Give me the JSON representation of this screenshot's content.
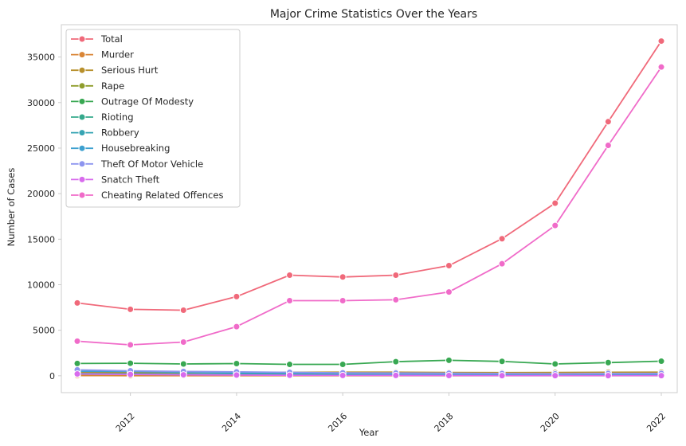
{
  "chart_data": {
    "type": "line",
    "title": "Major Crime Statistics Over the Years",
    "xlabel": "Year",
    "ylabel": "Number of Cases",
    "xlim": [
      2010.7,
      2022.3
    ],
    "ylim": [
      -1850,
      38550
    ],
    "xticks": [
      2012,
      2014,
      2016,
      2018,
      2020,
      2022
    ],
    "yticks": [
      0,
      5000,
      10000,
      15000,
      20000,
      25000,
      30000,
      35000
    ],
    "grid": false,
    "legend_position": "top-left",
    "x": [
      2011,
      2012,
      2013,
      2014,
      2015,
      2016,
      2017,
      2018,
      2019,
      2020,
      2021,
      2022
    ],
    "series": [
      {
        "name": "Total",
        "color": "#f0697a",
        "values": [
          8000,
          7300,
          7200,
          8700,
          11050,
          10850,
          11050,
          12100,
          15050,
          18950,
          27900,
          36750
        ]
      },
      {
        "name": "Murder",
        "color": "#d98536",
        "values": [
          20,
          15,
          15,
          15,
          15,
          15,
          10,
          10,
          10,
          10,
          10,
          10
        ]
      },
      {
        "name": "Serious Hurt",
        "color": "#b8902c",
        "values": [
          380,
          360,
          340,
          380,
          390,
          400,
          400,
          370,
          350,
          360,
          390,
          400
        ]
      },
      {
        "name": "Rape",
        "color": "#8f9d2c",
        "values": [
          150,
          150,
          160,
          170,
          180,
          180,
          180,
          200,
          190,
          190,
          200,
          200
        ]
      },
      {
        "name": "Outrage Of Modesty",
        "color": "#38a852",
        "values": [
          1350,
          1380,
          1300,
          1340,
          1250,
          1250,
          1550,
          1700,
          1580,
          1300,
          1450,
          1600
        ]
      },
      {
        "name": "Rioting",
        "color": "#35a98c",
        "values": [
          250,
          220,
          190,
          210,
          180,
          170,
          150,
          120,
          100,
          110,
          100,
          100
        ]
      },
      {
        "name": "Robbery",
        "color": "#36a4b3",
        "values": [
          200,
          180,
          150,
          140,
          120,
          100,
          80,
          70,
          60,
          60,
          70,
          70
        ]
      },
      {
        "name": "Housebreaking",
        "color": "#3da0cf",
        "values": [
          500,
          480,
          400,
          340,
          300,
          250,
          200,
          180,
          150,
          150,
          160,
          150
        ]
      },
      {
        "name": "Theft Of Motor Vehicle",
        "color": "#8d95ef",
        "values": [
          650,
          550,
          480,
          430,
          380,
          330,
          300,
          280,
          250,
          220,
          250,
          260
        ]
      },
      {
        "name": "Snatch Theft",
        "color": "#d86bed",
        "values": [
          200,
          150,
          110,
          80,
          60,
          40,
          40,
          30,
          20,
          20,
          20,
          20
        ]
      },
      {
        "name": "Cheating Related Offences",
        "color": "#f06bc9",
        "values": [
          3800,
          3400,
          3700,
          5400,
          8250,
          8250,
          8350,
          9200,
          12300,
          16500,
          25300,
          33900
        ]
      }
    ]
  }
}
